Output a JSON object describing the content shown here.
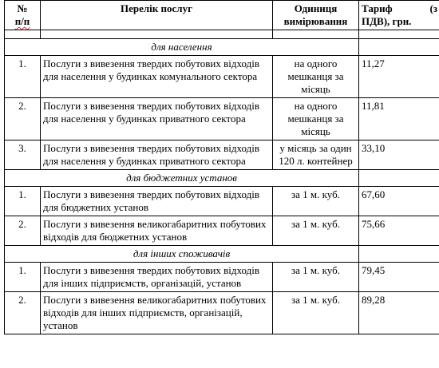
{
  "header": {
    "num": "№",
    "num2": "п/п",
    "service": "Перелік послуг",
    "unit": "Одиниця вимірювання",
    "tariff_a": "Тариф",
    "tariff_b": "(з",
    "tariff_c": "ПДВ), грн."
  },
  "sections": [
    {
      "title": "для населення",
      "rows": [
        {
          "n": "1.",
          "service": "Послуги з вивезення твердих побутових відходів для населення у будинках комунального сектора",
          "unit": "на одного мешканця за місяць",
          "price": "11,27"
        },
        {
          "n": "2.",
          "service": "Послуги з вивезення твердих побутових відходів для населення у будинках приватного сектора",
          "unit": "на одного мешканця за місяць",
          "price": "11,81"
        },
        {
          "n": "3.",
          "service": "Послуги з вивезення твердих побутових відходів для населення у будинках приватного сектора",
          "unit": "у місяць за один 120 л. контейнер",
          "price": "33,10"
        }
      ]
    },
    {
      "title": "для бюджетних установ",
      "rows": [
        {
          "n": "1.",
          "service": "Послуги з вивезення твердих побутових відходів для бюджетних установ",
          "unit": "за 1 м. куб.",
          "price": "67,60"
        },
        {
          "n": "2.",
          "service": "Послуги з вивезення великогабаритних побутових відходів для бюджетних установ",
          "unit": "за 1 м. куб.",
          "price": "75,66"
        }
      ]
    },
    {
      "title": "для інших споживачів",
      "rows": [
        {
          "n": "1.",
          "service": "Послуги з вивезення твердих побутових відходів для інших підприємств, організацій, установ",
          "unit": "за 1 м. куб.",
          "price": "79,45"
        },
        {
          "n": "2.",
          "service": "Послуги з вивезення великогабаритних побутових відходів для інших підприємств, організацій, установ",
          "unit": "за 1 м. куб.",
          "price": "89,28"
        }
      ]
    }
  ]
}
